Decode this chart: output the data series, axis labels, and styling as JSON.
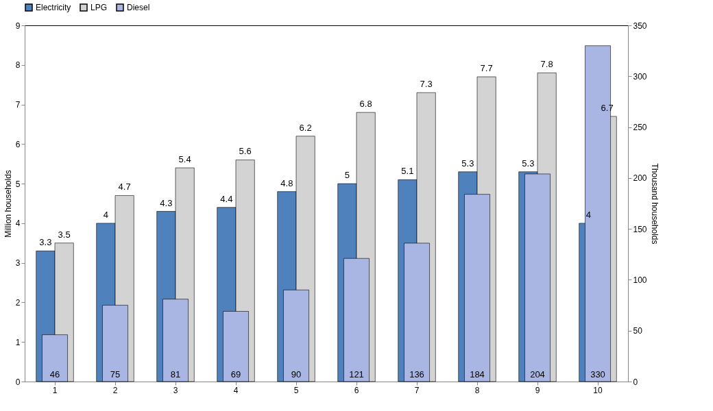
{
  "chart_data": {
    "type": "bar",
    "categories": [
      "1",
      "2",
      "3",
      "4",
      "5",
      "6",
      "7",
      "8",
      "9",
      "10"
    ],
    "ylabel": "Million households",
    "y2label": "Thousand households",
    "ylim": [
      0,
      9
    ],
    "yticks": [
      0,
      1,
      2,
      3,
      4,
      5,
      6,
      7,
      8,
      9
    ],
    "y2lim": [
      0,
      350
    ],
    "y2ticks": [
      0,
      50,
      100,
      150,
      200,
      250,
      300,
      350
    ],
    "series": [
      {
        "name": "Electricity",
        "color": "#4f81bd",
        "values": [
          3.3,
          4,
          4.3,
          4.4,
          4.8,
          5,
          5.1,
          5.3,
          5.3,
          4
        ]
      },
      {
        "name": "LPG",
        "color": "#d3d3d3",
        "values": [
          3.5,
          4.7,
          5.4,
          5.6,
          6.2,
          6.8,
          7.3,
          7.7,
          7.8,
          6.7
        ]
      },
      {
        "name": "Diesel",
        "color": "#a9b5e3",
        "axis": "y2",
        "values": [
          46,
          75,
          81,
          69,
          90,
          121,
          136,
          184,
          204,
          330
        ]
      }
    ],
    "data_labels": true,
    "legend": "top",
    "grid": false
  }
}
